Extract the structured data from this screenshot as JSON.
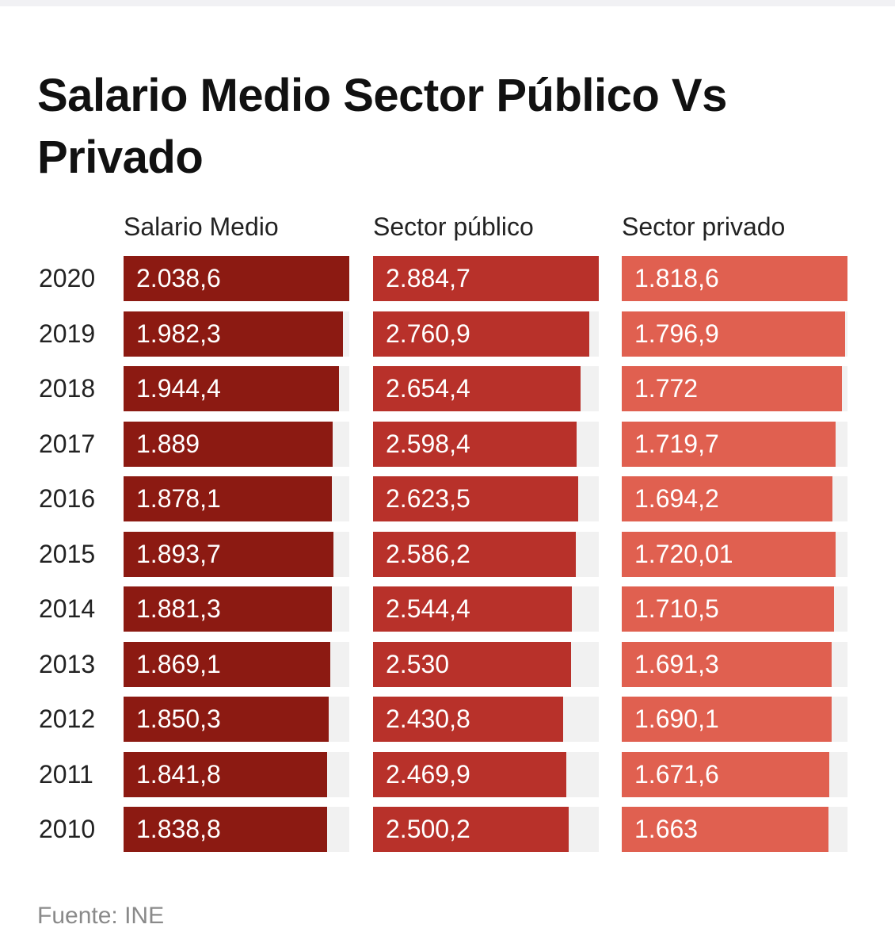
{
  "title": "Salario Medio Sector Público Vs Privado",
  "source": "Fuente: INE",
  "chart_data": {
    "type": "bar",
    "orientation": "horizontal",
    "title": "Salario Medio Sector Público Vs Privado",
    "categories": [
      "2020",
      "2019",
      "2018",
      "2017",
      "2016",
      "2015",
      "2014",
      "2013",
      "2012",
      "2011",
      "2010"
    ],
    "series": [
      {
        "name": "Salario Medio",
        "color": "#8c1a12",
        "values": [
          2038.6,
          1982.3,
          1944.4,
          1889,
          1878.1,
          1893.7,
          1881.3,
          1869.1,
          1850.3,
          1841.8,
          1838.8
        ],
        "labels": [
          "2.038,6",
          "1.982,3",
          "1.944,4",
          "1.889",
          "1.878,1",
          "1.893,7",
          "1.881,3",
          "1.869,1",
          "1.850,3",
          "1.841,8",
          "1.838,8"
        ]
      },
      {
        "name": "Sector público",
        "color": "#b8312a",
        "values": [
          2884.7,
          2760.9,
          2654.4,
          2598.4,
          2623.5,
          2586.2,
          2544.4,
          2530,
          2430.8,
          2469.9,
          2500.2
        ],
        "labels": [
          "2.884,7",
          "2.760,9",
          "2.654,4",
          "2.598,4",
          "2.623,5",
          "2.586,2",
          "2.544,4",
          "2.530",
          "2.430,8",
          "2.469,9",
          "2.500,2"
        ]
      },
      {
        "name": "Sector privado",
        "color": "#e06050",
        "values": [
          1818.6,
          1796.9,
          1772,
          1719.7,
          1694.2,
          1720.01,
          1710.5,
          1691.3,
          1690.1,
          1671.6,
          1663
        ],
        "labels": [
          "1.818,6",
          "1.796,9",
          "1.772",
          "1.719,7",
          "1.694,2",
          "1.720,01",
          "1.710,5",
          "1.691,3",
          "1.690,1",
          "1.671,6",
          "1.663"
        ]
      }
    ],
    "legend": "none",
    "grid": false
  }
}
